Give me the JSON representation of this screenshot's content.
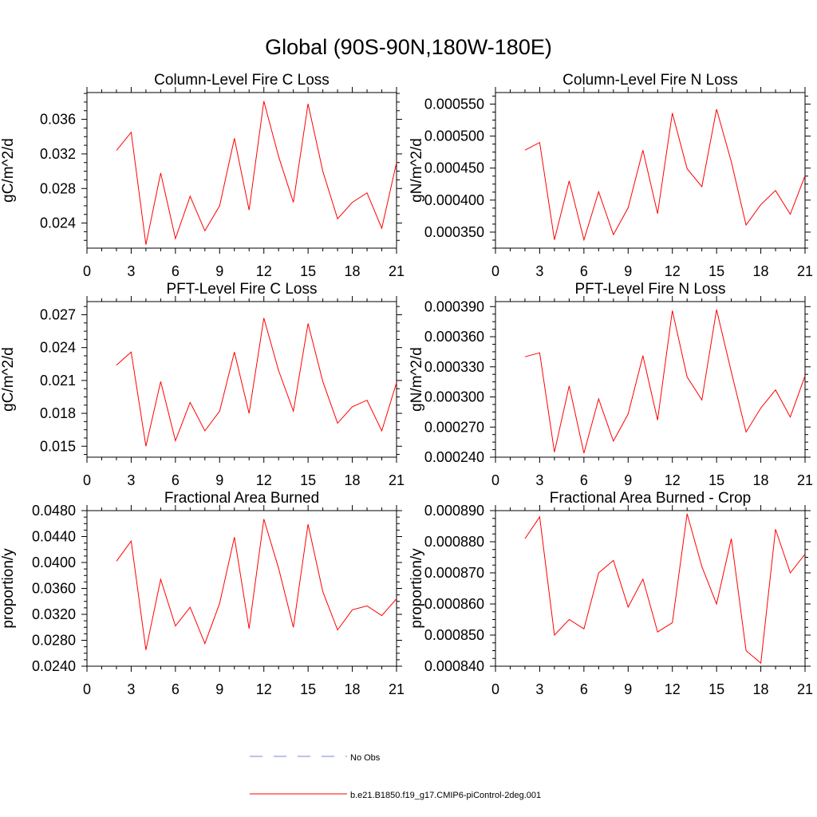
{
  "figure_title": "Global (90S-90N,180W-180E)",
  "colors": {
    "series": "#ff0000",
    "obs": "#7b84d6",
    "axis": "#000000"
  },
  "legend": {
    "entries": [
      {
        "label": "No Obs",
        "style": "dashed",
        "color": "#7b84d6"
      },
      {
        "label": "b.e21.B1850.f19_g17.CMIP6-piControl-2deg.001",
        "style": "solid",
        "color": "#ff0000"
      }
    ]
  },
  "chart_data": [
    {
      "type": "line",
      "title": "Column-Level Fire C Loss",
      "ylabel": "gC/m^2/d",
      "xlabel": "",
      "xlim": [
        0,
        21
      ],
      "xticks": [
        "0",
        "3",
        "6",
        "9",
        "12",
        "15",
        "18",
        "21"
      ],
      "ylim": [
        0.0211,
        0.0391
      ],
      "yticks": [
        "0.024",
        "0.028",
        "0.032",
        "0.036"
      ],
      "series": [
        {
          "name": "b.e21.B1850.f19_g17.CMIP6-piControl-2deg.001",
          "x": [
            2,
            3,
            4,
            5,
            6,
            7,
            8,
            9,
            10,
            11,
            12,
            13,
            14,
            15,
            16,
            17,
            18,
            19,
            20,
            21
          ],
          "values": [
            0.0324,
            0.0345,
            0.0215,
            0.0298,
            0.0222,
            0.0271,
            0.0231,
            0.026,
            0.0338,
            0.0255,
            0.0381,
            0.0317,
            0.0264,
            0.0378,
            0.03,
            0.0245,
            0.0264,
            0.0275,
            0.0234,
            0.031
          ]
        }
      ]
    },
    {
      "type": "line",
      "title": "Column-Level Fire N Loss",
      "ylabel": "gN/m^2/d",
      "xlabel": "",
      "xlim": [
        0,
        21
      ],
      "xticks": [
        "0",
        "3",
        "6",
        "9",
        "12",
        "15",
        "18",
        "21"
      ],
      "ylim": [
        0.000325,
        0.000568
      ],
      "yticks": [
        "0.000350",
        "0.000400",
        "0.000450",
        "0.000500",
        "0.000550"
      ],
      "series": [
        {
          "name": "b.e21.B1850.f19_g17.CMIP6-piControl-2deg.001",
          "x": [
            2,
            3,
            4,
            5,
            6,
            7,
            8,
            9,
            10,
            11,
            12,
            13,
            14,
            15,
            16,
            17,
            18,
            19,
            20,
            21
          ],
          "values": [
            0.000478,
            0.00049,
            0.000338,
            0.00043,
            0.000338,
            0.000413,
            0.000346,
            0.000388,
            0.000478,
            0.000379,
            0.000536,
            0.000449,
            0.000421,
            0.000542,
            0.00046,
            0.000361,
            0.000393,
            0.000415,
            0.000378,
            0.000438
          ]
        }
      ]
    },
    {
      "type": "line",
      "title": "PFT-Level Fire C Loss",
      "ylabel": "gC/m^2/d",
      "xlabel": "",
      "xlim": [
        0,
        21
      ],
      "xticks": [
        "0",
        "3",
        "6",
        "9",
        "12",
        "15",
        "18",
        "21"
      ],
      "ylim": [
        0.014,
        0.0282
      ],
      "yticks": [
        "0.015",
        "0.018",
        "0.021",
        "0.024",
        "0.027"
      ],
      "series": [
        {
          "name": "b.e21.B1850.f19_g17.CMIP6-piControl-2deg.001",
          "x": [
            2,
            3,
            4,
            5,
            6,
            7,
            8,
            9,
            10,
            11,
            12,
            13,
            14,
            15,
            16,
            17,
            18,
            19,
            20,
            21
          ],
          "values": [
            0.0224,
            0.0236,
            0.015,
            0.0209,
            0.0155,
            0.019,
            0.0164,
            0.0182,
            0.0236,
            0.018,
            0.0267,
            0.0219,
            0.0182,
            0.0262,
            0.0209,
            0.0171,
            0.0186,
            0.0192,
            0.0164,
            0.0208
          ]
        }
      ]
    },
    {
      "type": "line",
      "title": "PFT-Level Fire N Loss",
      "ylabel": "gN/m^2/d",
      "xlabel": "",
      "xlim": [
        0,
        21
      ],
      "xticks": [
        "0",
        "3",
        "6",
        "9",
        "12",
        "15",
        "18",
        "21"
      ],
      "ylim": [
        0.00024,
        0.000395
      ],
      "yticks": [
        "0.000240",
        "0.000270",
        "0.000300",
        "0.000330",
        "0.000360",
        "0.000390"
      ],
      "series": [
        {
          "name": "b.e21.B1850.f19_g17.CMIP6-piControl-2deg.001",
          "x": [
            2,
            3,
            4,
            5,
            6,
            7,
            8,
            9,
            10,
            11,
            12,
            13,
            14,
            15,
            16,
            17,
            18,
            19,
            20,
            21
          ],
          "values": [
            0.00034,
            0.000344,
            0.000245,
            0.000311,
            0.000244,
            0.000298,
            0.000256,
            0.000283,
            0.000341,
            0.000277,
            0.000386,
            0.00032,
            0.000297,
            0.000387,
            0.000325,
            0.000265,
            0.000289,
            0.000307,
            0.00028,
            0.000321
          ]
        }
      ]
    },
    {
      "type": "line",
      "title": "Fractional Area Burned",
      "ylabel": "proportion/y",
      "xlabel": "",
      "xlim": [
        0,
        21
      ],
      "xticks": [
        "0",
        "3",
        "6",
        "9",
        "12",
        "15",
        "18",
        "21"
      ],
      "ylim": [
        0.024,
        0.048
      ],
      "yticks": [
        "0.0240",
        "0.0280",
        "0.0320",
        "0.0360",
        "0.0400",
        "0.0440",
        "0.0480"
      ],
      "series": [
        {
          "name": "b.e21.B1850.f19_g17.CMIP6-piControl-2deg.001",
          "x": [
            2,
            3,
            4,
            5,
            6,
            7,
            8,
            9,
            10,
            11,
            12,
            13,
            14,
            15,
            16,
            17,
            18,
            19,
            20,
            21
          ],
          "values": [
            0.0402,
            0.0433,
            0.0265,
            0.0374,
            0.0302,
            0.0331,
            0.0275,
            0.0337,
            0.0439,
            0.0298,
            0.0467,
            0.0391,
            0.03,
            0.0459,
            0.0355,
            0.0296,
            0.0327,
            0.0333,
            0.0318,
            0.0344
          ]
        }
      ]
    },
    {
      "type": "line",
      "title": "Fractional Area Burned - Crop",
      "ylabel": "proportion/y",
      "xlabel": "",
      "xlim": [
        0,
        21
      ],
      "xticks": [
        "0",
        "3",
        "6",
        "9",
        "12",
        "15",
        "18",
        "21"
      ],
      "ylim": [
        0.00084,
        0.00089
      ],
      "yticks": [
        "0.000840",
        "0.000850",
        "0.000860",
        "0.000870",
        "0.000880",
        "0.000890"
      ],
      "series": [
        {
          "name": "b.e21.B1850.f19_g17.CMIP6-piControl-2deg.001",
          "x": [
            2,
            3,
            4,
            5,
            6,
            7,
            8,
            9,
            10,
            11,
            12,
            13,
            14,
            15,
            16,
            17,
            18,
            19,
            20,
            21
          ],
          "values": [
            0.000881,
            0.000888,
            0.00085,
            0.000855,
            0.000852,
            0.00087,
            0.000874,
            0.000859,
            0.000868,
            0.000851,
            0.000854,
            0.000889,
            0.000872,
            0.00086,
            0.000881,
            0.000845,
            0.000841,
            0.000884,
            0.00087,
            0.000876
          ]
        }
      ]
    }
  ]
}
